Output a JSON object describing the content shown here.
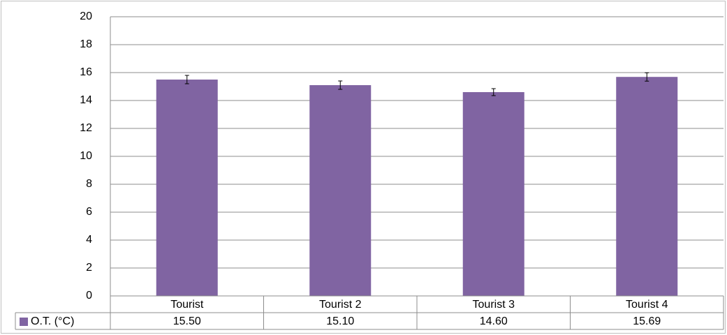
{
  "chart_data": {
    "type": "bar",
    "categories": [
      "Tourist",
      "Tourist 2",
      "Tourist 3",
      "Tourist 4"
    ],
    "series": [
      {
        "name": "O.T. (°C)",
        "color": "#8064a2",
        "values": [
          15.5,
          15.1,
          14.6,
          15.69
        ],
        "value_labels": [
          "15.50",
          "15.10",
          "14.60",
          "15.69"
        ],
        "errors": [
          0.3,
          0.3,
          0.25,
          0.3
        ]
      }
    ],
    "ylim": [
      0,
      20
    ],
    "yticks": [
      0,
      2,
      4,
      6,
      8,
      10,
      12,
      14,
      16,
      18,
      20
    ],
    "grid": true,
    "data_table": true
  }
}
